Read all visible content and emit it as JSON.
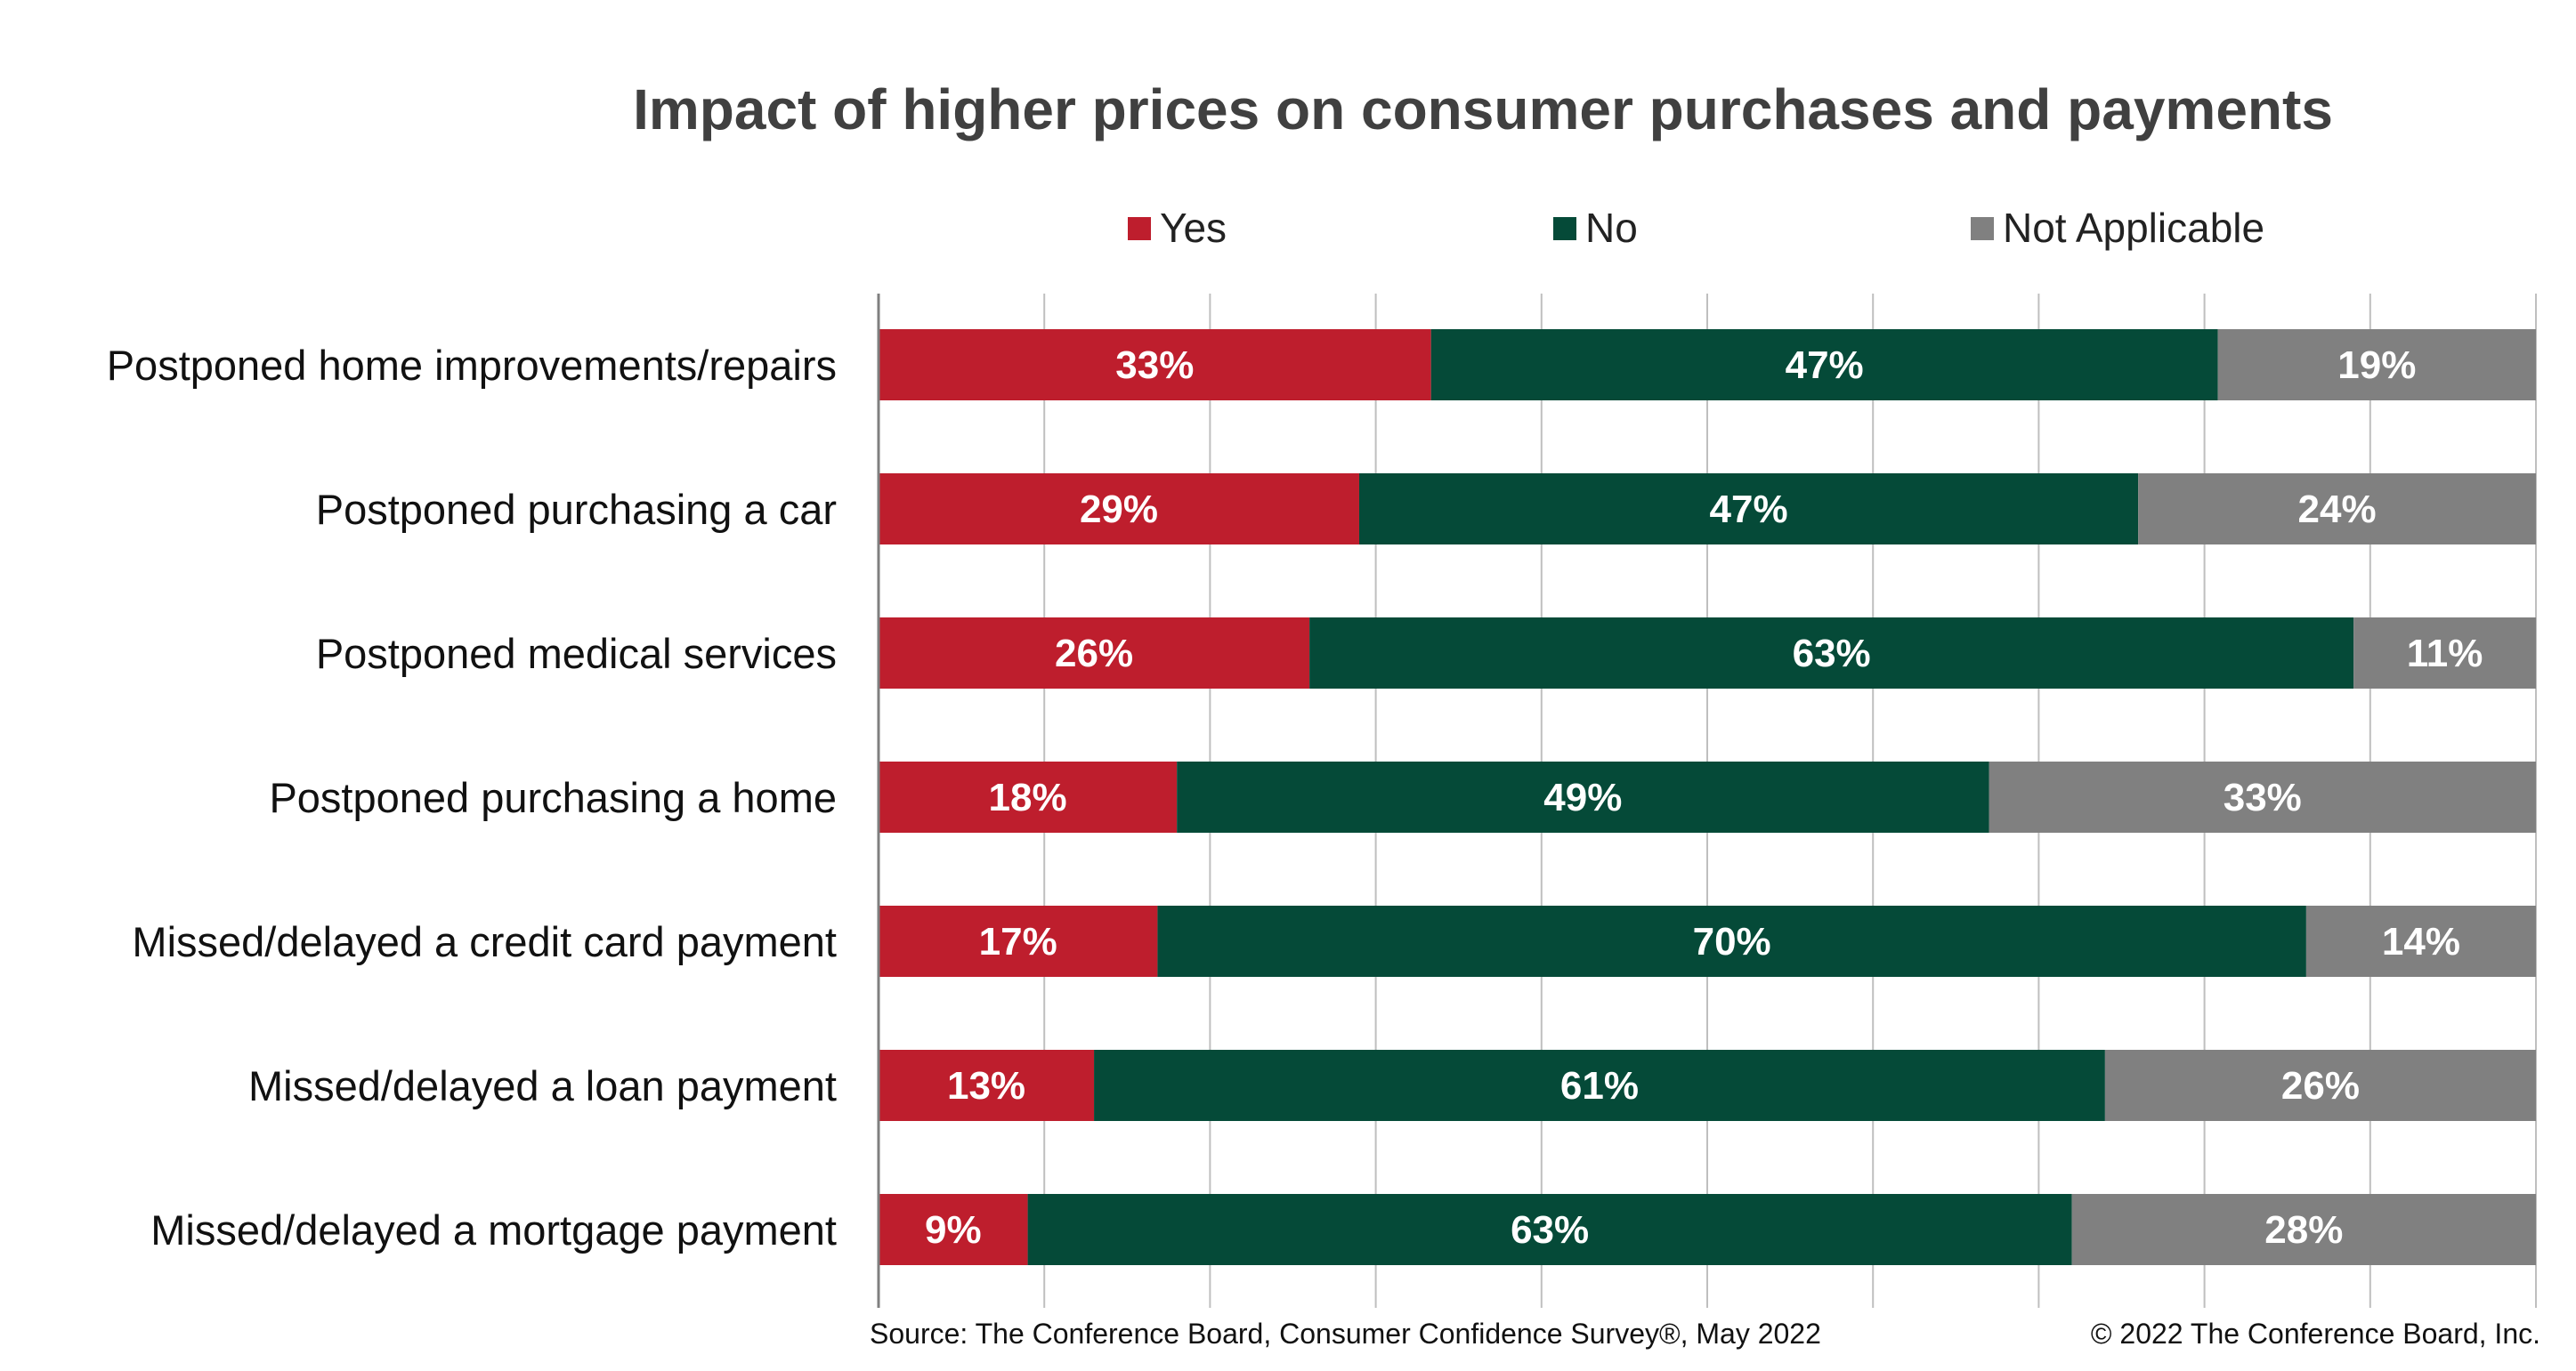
{
  "chart_data": {
    "type": "bar",
    "orientation": "horizontal",
    "stacked": true,
    "title": "Impact of higher prices on consumer purchases and payments",
    "categories": [
      "Postponed home improvements/repairs",
      "Postponed purchasing a car",
      "Postponed medical services",
      "Postponed purchasing a home",
      "Missed/delayed a credit card payment",
      "Missed/delayed a loan payment",
      "Missed/delayed a mortgage payment"
    ],
    "series": [
      {
        "name": "Yes",
        "color": "#BE1E2D",
        "values": [
          33,
          29,
          26,
          18,
          17,
          13,
          9
        ]
      },
      {
        "name": "No",
        "color": "#054A38",
        "values": [
          47,
          47,
          63,
          49,
          70,
          61,
          63
        ]
      },
      {
        "name": "Not Applicable",
        "color": "#808080",
        "values": [
          19,
          24,
          11,
          33,
          14,
          26,
          28
        ]
      }
    ],
    "value_suffix": "%",
    "grid": true,
    "legend_position": "top"
  },
  "footer": {
    "source": "Source: The Conference Board, Consumer Confidence Survey®, May 2022",
    "copyright": "© 2022 The Conference Board, Inc."
  }
}
